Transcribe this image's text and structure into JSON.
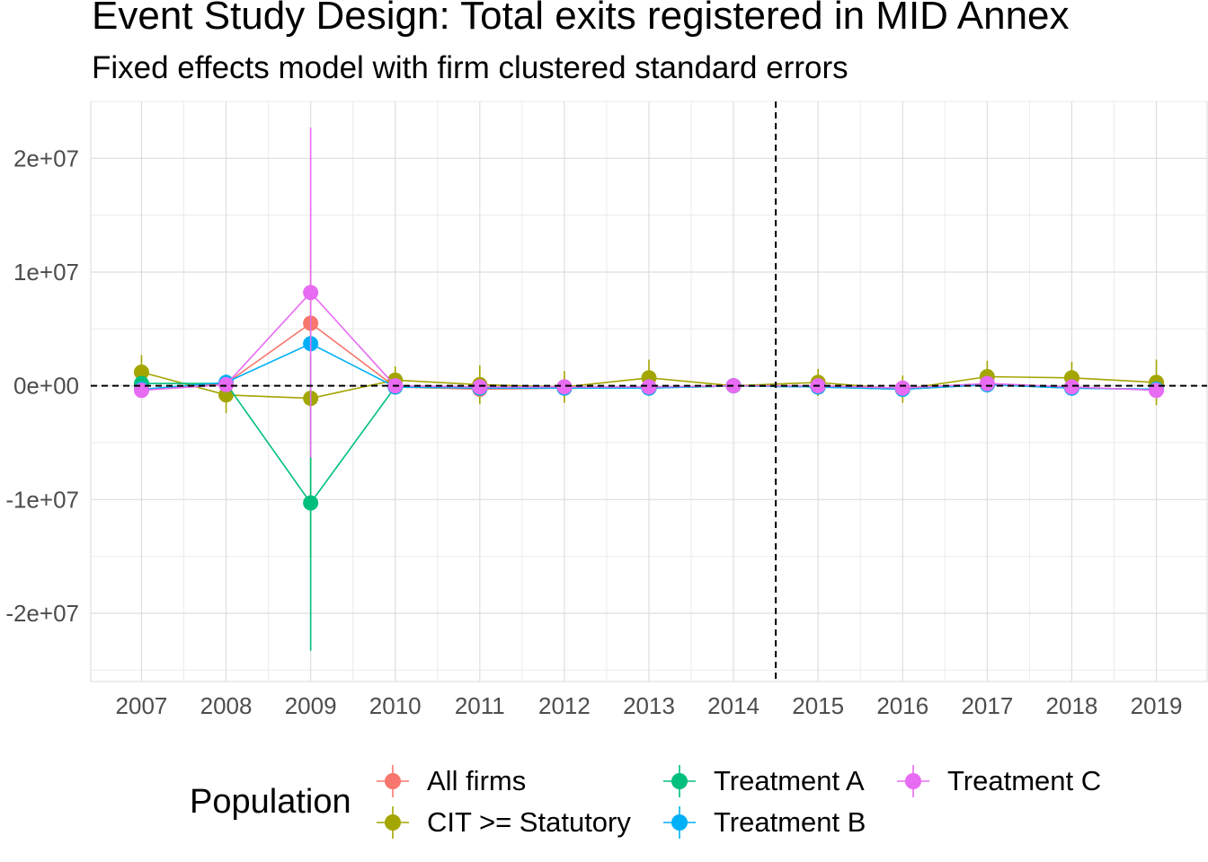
{
  "chart_data": {
    "type": "line",
    "title": "Event Study Design: Total exits registered in MID Annex",
    "subtitle": "Fixed effects model with firm clustered standard errors",
    "x": [
      "2007",
      "2008",
      "2009",
      "2010",
      "2011",
      "2012",
      "2013",
      "2014",
      "2015",
      "2016",
      "2017",
      "2018",
      "2019"
    ],
    "ylim": [
      -26000000,
      25000000
    ],
    "yticks": [
      -20000000,
      -10000000,
      0,
      10000000,
      20000000
    ],
    "ytick_labels": [
      "-2e+07",
      "-1e+07",
      "0e+00",
      "1e+07",
      "2e+07"
    ],
    "grid": true,
    "reference_lines": {
      "horizontal": 0,
      "vertical_between": [
        "2014",
        "2015"
      ]
    },
    "legend": {
      "title": "Population",
      "position": "bottom"
    },
    "series": [
      {
        "name": "All firms",
        "color": "#F8766D",
        "values": [
          -300000,
          200000,
          5500000,
          -100000,
          -300000,
          -200000,
          -200000,
          0,
          -100000,
          -300000,
          100000,
          -200000,
          -300000
        ],
        "error_low": [
          -800000,
          -200000,
          4800000,
          -500000,
          -1000000,
          -800000,
          -700000,
          -200000,
          -500000,
          -900000,
          -300000,
          -700000,
          -1000000
        ],
        "error_high": [
          200000,
          600000,
          6200000,
          300000,
          400000,
          400000,
          300000,
          200000,
          300000,
          300000,
          500000,
          300000,
          400000
        ]
      },
      {
        "name": "CIT >= Statutory",
        "color": "#A3A500",
        "values": [
          1200000,
          -800000,
          -1100000,
          500000,
          100000,
          -100000,
          700000,
          0,
          300000,
          -300000,
          800000,
          700000,
          300000
        ],
        "error_low": [
          -300000,
          -2400000,
          -15000000,
          -700000,
          -1600000,
          -1500000,
          -900000,
          -200000,
          -900000,
          -1500000,
          -600000,
          -700000,
          -1700000
        ],
        "error_high": [
          2700000,
          800000,
          12800000,
          1700000,
          1800000,
          1300000,
          2300000,
          200000,
          1500000,
          900000,
          2200000,
          2100000,
          2300000
        ]
      },
      {
        "name": "Treatment A",
        "color": "#00BF7D",
        "values": [
          200000,
          200000,
          -10300000,
          -100000,
          -200000,
          -200000,
          -200000,
          0,
          -100000,
          -300000,
          100000,
          -200000,
          -300000
        ],
        "error_low": [
          -200000,
          -600000,
          -23300000,
          -500000,
          -600000,
          -600000,
          -600000,
          -200000,
          -800000,
          -700000,
          -300000,
          -600000,
          -700000
        ],
        "error_high": [
          600000,
          1000000,
          2700000,
          300000,
          200000,
          200000,
          200000,
          200000,
          600000,
          100000,
          500000,
          200000,
          100000
        ]
      },
      {
        "name": "Treatment B",
        "color": "#00B0F6",
        "values": [
          -300000,
          300000,
          3700000,
          -100000,
          -200000,
          -200000,
          -200000,
          0,
          -100000,
          -300000,
          100000,
          -200000,
          -300000
        ],
        "error_low": [
          -700000,
          -100000,
          3000000,
          -500000,
          -600000,
          -600000,
          -600000,
          -200000,
          -500000,
          -700000,
          -300000,
          -600000,
          -700000
        ],
        "error_high": [
          100000,
          700000,
          4400000,
          300000,
          200000,
          200000,
          200000,
          200000,
          300000,
          100000,
          500000,
          200000,
          100000
        ]
      },
      {
        "name": "Treatment C",
        "color": "#E76BF3",
        "values": [
          -400000,
          100000,
          8200000,
          0,
          -100000,
          -100000,
          -100000,
          0,
          0,
          -200000,
          200000,
          -100000,
          -400000
        ],
        "error_low": [
          -1000000,
          -300000,
          -6300000,
          -400000,
          -500000,
          -500000,
          -500000,
          -200000,
          -400000,
          -600000,
          -200000,
          -500000,
          -800000
        ],
        "error_high": [
          200000,
          500000,
          22700000,
          400000,
          300000,
          300000,
          300000,
          200000,
          400000,
          200000,
          600000,
          300000,
          0
        ]
      }
    ]
  }
}
